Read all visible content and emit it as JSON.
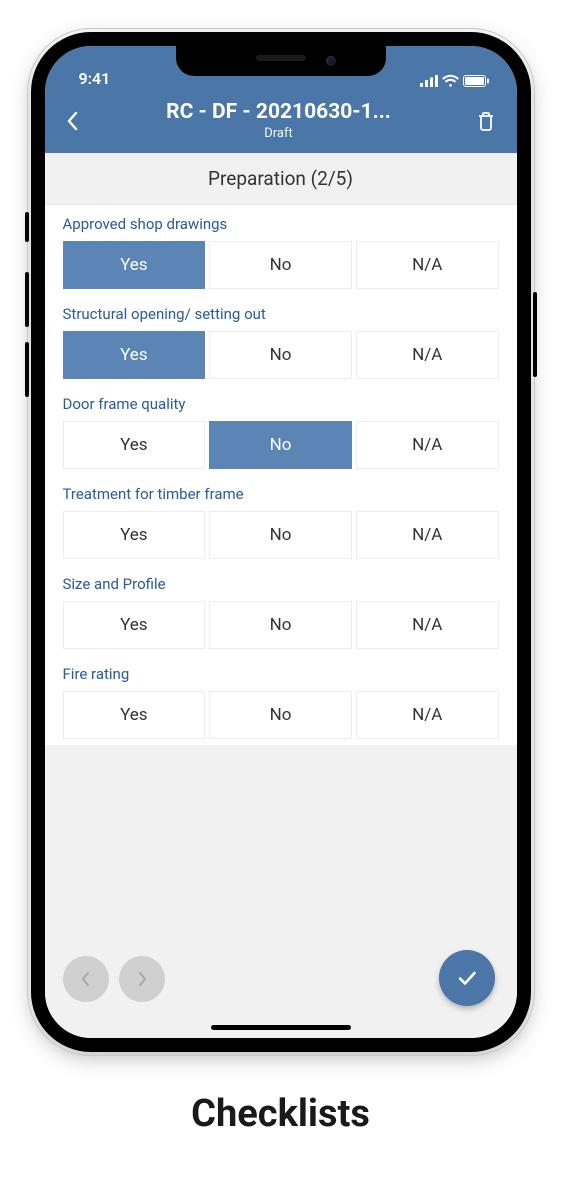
{
  "caption": "Checklists",
  "status_bar": {
    "time": "9:41"
  },
  "header": {
    "title": "RC - DF - 20210630-1...",
    "subtitle": "Draft"
  },
  "section": {
    "title": "Preparation",
    "progress_current": 2,
    "progress_total": 5,
    "display": "Preparation (2/5)"
  },
  "option_labels": {
    "yes": "Yes",
    "no": "No",
    "na": "N/A"
  },
  "colors": {
    "brand": "#4a76a8",
    "option_selected_bg": "#5a85b5",
    "option_border": "#ededed",
    "section_bg": "#f1f1f1",
    "label_color": "#2a5a9a",
    "nav_circle_bg": "#d0d0d0"
  },
  "questions": [
    {
      "label": "Approved shop drawings",
      "selected": "yes"
    },
    {
      "label": "Structural opening/ setting out",
      "selected": "yes"
    },
    {
      "label": "Door frame quality",
      "selected": "no"
    },
    {
      "label": "Treatment for timber frame",
      "selected": null
    },
    {
      "label": "Size and Profile",
      "selected": null
    },
    {
      "label": "Fire rating",
      "selected": null
    }
  ]
}
